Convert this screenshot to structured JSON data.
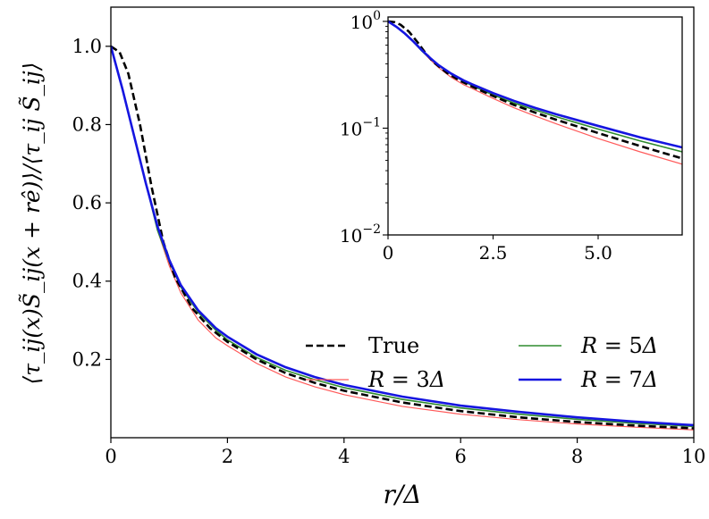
{
  "chart_data": [
    {
      "type": "line",
      "xlabel": "r/Δ",
      "ylabel": "⟨τ_ij(x)S̃_ij(x + rê)⟩/⟨τ_ij S̃_ij⟩",
      "xlim": [
        0,
        10
      ],
      "ylim": [
        0,
        1.1
      ],
      "xticks": [
        "0",
        "2",
        "4",
        "6",
        "8",
        "10"
      ],
      "yticks": [
        "0.2",
        "0.4",
        "0.6",
        "0.8",
        "1.0"
      ],
      "grid": false,
      "legend": {
        "placement": "lower-right",
        "columns": 2,
        "entries": [
          "True",
          "R = 3Δ",
          "R = 5Δ",
          "R = 7Δ"
        ]
      },
      "series": [
        {
          "name": "True",
          "color": "#000000",
          "style": "dashed",
          "x": [
            0,
            0.15,
            0.3,
            0.5,
            0.7,
            0.9,
            1.1,
            1.4,
            1.7,
            2.0,
            2.5,
            3.0,
            3.5,
            4.0,
            5.0,
            6.0,
            7.0,
            8.0,
            9.0,
            10.0
          ],
          "y": [
            1.0,
            0.985,
            0.93,
            0.8,
            0.64,
            0.5,
            0.41,
            0.33,
            0.28,
            0.245,
            0.2,
            0.165,
            0.14,
            0.12,
            0.09,
            0.068,
            0.052,
            0.04,
            0.031,
            0.024
          ]
        },
        {
          "name": "R = 3Δ",
          "color": "#ff5a5a",
          "style": "solid",
          "x": [
            0,
            0.2,
            0.4,
            0.6,
            0.8,
            1.0,
            1.2,
            1.5,
            1.8,
            2.0,
            2.5,
            3.0,
            3.5,
            4.0,
            5.0,
            6.0,
            7.0,
            8.0,
            9.0,
            10.0
          ],
          "y": [
            1.0,
            0.89,
            0.77,
            0.65,
            0.53,
            0.44,
            0.37,
            0.3,
            0.255,
            0.235,
            0.19,
            0.155,
            0.13,
            0.11,
            0.08,
            0.06,
            0.046,
            0.035,
            0.027,
            0.02
          ]
        },
        {
          "name": "R = 5Δ",
          "color": "#2e8b2e",
          "style": "solid",
          "x": [
            0,
            0.2,
            0.4,
            0.6,
            0.8,
            1.0,
            1.2,
            1.5,
            1.8,
            2.0,
            2.5,
            3.0,
            3.5,
            4.0,
            5.0,
            6.0,
            7.0,
            8.0,
            9.0,
            10.0
          ],
          "y": [
            1.0,
            0.89,
            0.77,
            0.65,
            0.53,
            0.45,
            0.385,
            0.32,
            0.275,
            0.25,
            0.205,
            0.172,
            0.148,
            0.128,
            0.098,
            0.076,
            0.06,
            0.047,
            0.037,
            0.029
          ]
        },
        {
          "name": "R = 7Δ",
          "color": "#1515e0",
          "style": "solid",
          "x": [
            0,
            0.2,
            0.4,
            0.6,
            0.8,
            1.0,
            1.2,
            1.5,
            1.8,
            2.0,
            2.5,
            3.0,
            3.5,
            4.0,
            5.0,
            6.0,
            7.0,
            8.0,
            9.0,
            10.0
          ],
          "y": [
            1.0,
            0.89,
            0.77,
            0.65,
            0.54,
            0.455,
            0.39,
            0.325,
            0.28,
            0.258,
            0.213,
            0.18,
            0.155,
            0.135,
            0.105,
            0.082,
            0.066,
            0.052,
            0.041,
            0.032
          ]
        }
      ]
    },
    {
      "type": "line",
      "inset": true,
      "xlim": [
        0,
        7
      ],
      "ylim": [
        0.01,
        1.1
      ],
      "yscale": "log",
      "xticks": [
        "0",
        "2.5",
        "5.0"
      ],
      "yticks": [
        {
          "base": "10",
          "exp": "0",
          "value": 1
        },
        {
          "base": "10",
          "exp": "−1",
          "value": 0.1
        },
        {
          "base": "10",
          "exp": "−2",
          "value": 0.01
        }
      ],
      "grid": false,
      "series_ref": [
        "True",
        "R = 3Δ",
        "R = 5Δ",
        "R = 7Δ"
      ]
    }
  ]
}
